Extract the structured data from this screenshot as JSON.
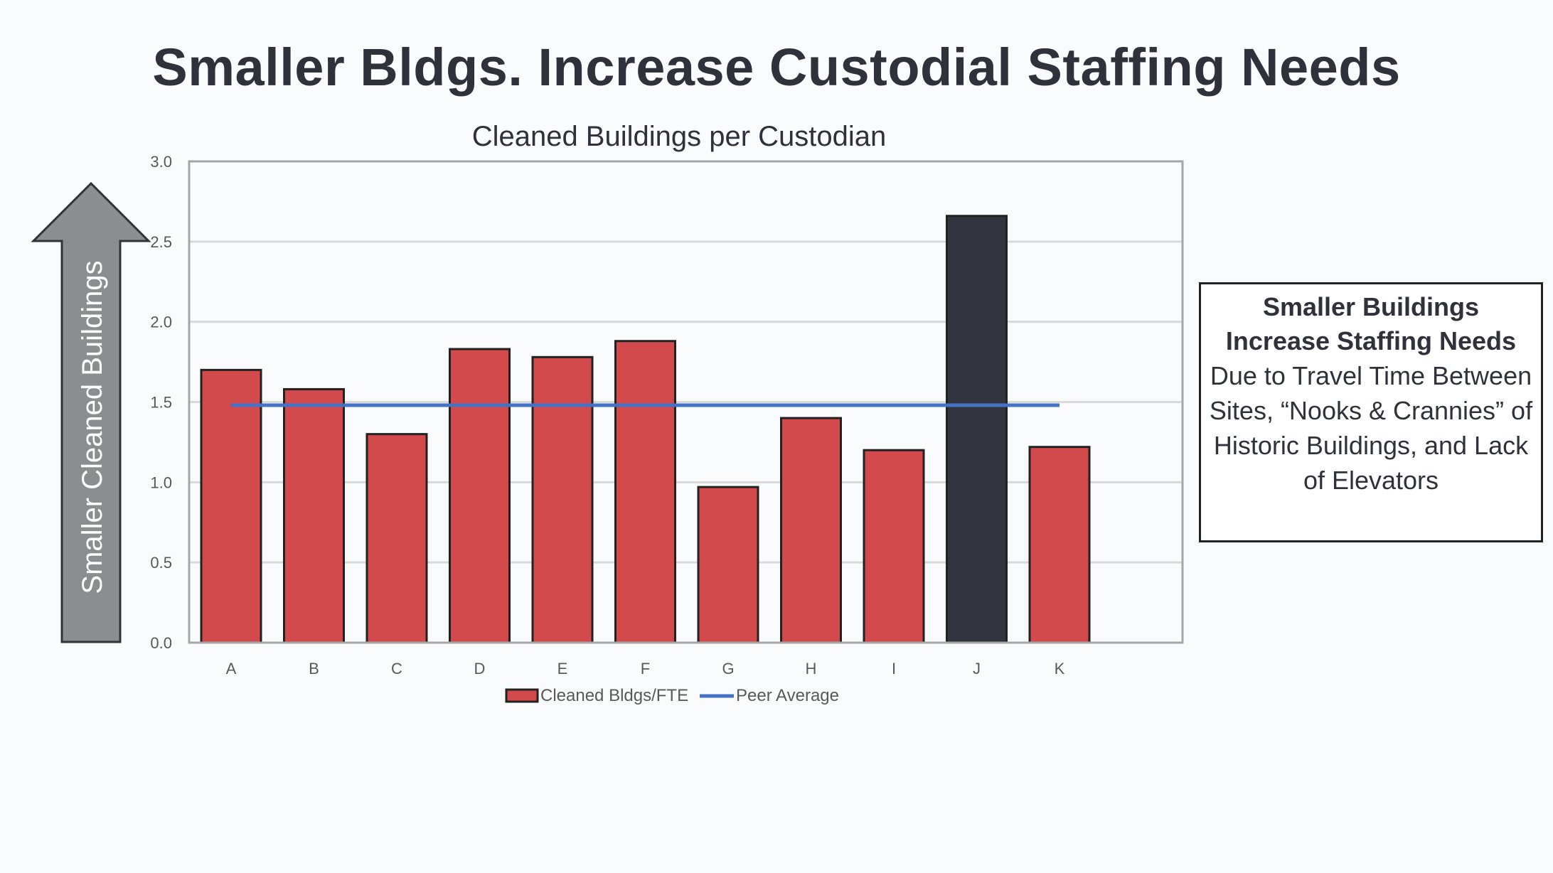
{
  "slide": {
    "title": "Smaller Bldgs. Increase Custodial Staffing Needs",
    "arrow_label": "Smaller Cleaned Buildings"
  },
  "note": {
    "heading": "Smaller Buildings Increase Staffing Needs",
    "body": "Due to Travel Time Between Sites, “Nooks & Crannies” of Historic Buildings, and Lack of Elevators"
  },
  "chart_data": {
    "type": "bar",
    "title": "Cleaned Buildings per Custodian",
    "categories": [
      "A",
      "B",
      "C",
      "D",
      "E",
      "F",
      "G",
      "H",
      "I",
      "J",
      "K"
    ],
    "series": [
      {
        "name": "Cleaned Bldgs/FTE",
        "values": [
          1.7,
          1.58,
          1.3,
          1.83,
          1.78,
          1.88,
          0.97,
          1.4,
          1.2,
          2.66,
          1.22
        ]
      },
      {
        "name": "Peer Average",
        "type": "line",
        "values": [
          1.48,
          1.48,
          1.48,
          1.48,
          1.48,
          1.48,
          1.48,
          1.48,
          1.48,
          1.48,
          1.48
        ]
      }
    ],
    "highlight_category": "J",
    "ylim": [
      0,
      3.0
    ],
    "yticks": [
      "0.0",
      "0.5",
      "1.0",
      "1.5",
      "2.0",
      "2.5",
      "3.0"
    ],
    "grid": true,
    "legend": "bottom",
    "colors": {
      "bar": "#d24a4b",
      "highlight_bar": "#32353e",
      "line": "#4472c4",
      "arrow": "#8c8d90"
    }
  }
}
